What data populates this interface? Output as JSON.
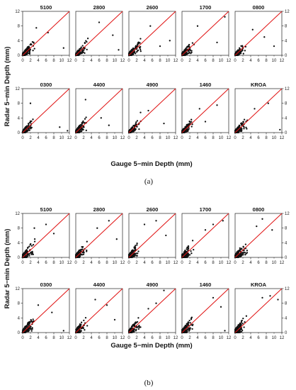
{
  "figure": {
    "xlabel": "Gauge 5−min Depth (mm)",
    "ylabel": "Radar 5−min Depth (mm)",
    "captions": [
      "(a)",
      "(b)"
    ]
  },
  "colors": {
    "points": "#111111",
    "reference_line": "#e01010",
    "frame": "#222222"
  },
  "chart_data": [
    {
      "type": "scatter",
      "subfigure": "(a)",
      "xlim": [
        0,
        12
      ],
      "ylim": [
        0,
        12
      ],
      "x_ticks": [
        0,
        4,
        8,
        12
      ],
      "x_minor_ticks": [
        2,
        6,
        10
      ],
      "x_tick_labels": [
        "0",
        "2",
        "4",
        "6",
        "8",
        "10",
        "12"
      ],
      "y_ticks": [
        0,
        4,
        8,
        12
      ],
      "y_tick_labels": [
        "0",
        "4",
        "8",
        "12"
      ],
      "reference_line": "1:1",
      "grid": false,
      "panels": [
        {
          "name": "5100",
          "spread": 0.9,
          "max_gauge": 7.5,
          "outliers": [
            [
              6.5,
              6.2
            ],
            [
              10.5,
              2.0
            ],
            [
              3.5,
              7.5
            ]
          ]
        },
        {
          "name": "2800",
          "spread": 0.9,
          "max_gauge": 8.5,
          "outliers": [
            [
              9.5,
              5.5
            ],
            [
              6.0,
              9.0
            ],
            [
              11.0,
              1.5
            ]
          ]
        },
        {
          "name": "2600",
          "spread": 1.0,
          "max_gauge": 9.0,
          "outliers": [
            [
              8.0,
              2.5
            ],
            [
              5.5,
              8.0
            ],
            [
              10.5,
              4.0
            ]
          ]
        },
        {
          "name": "1700",
          "spread": 1.0,
          "max_gauge": 9.0,
          "outliers": [
            [
              11.0,
              10.5
            ],
            [
              9.0,
              3.5
            ],
            [
              4.0,
              8.0
            ]
          ]
        },
        {
          "name": "0800",
          "spread": 0.9,
          "max_gauge": 8.0,
          "outliers": [
            [
              7.5,
              5.0
            ],
            [
              10.0,
              2.5
            ],
            [
              4.5,
              7.0
            ]
          ]
        },
        {
          "name": "0300",
          "spread": 0.9,
          "max_gauge": 7.0,
          "outliers": [
            [
              11.5,
              0.5
            ],
            [
              9.5,
              1.5
            ],
            [
              2.0,
              8.0
            ]
          ]
        },
        {
          "name": "4400",
          "spread": 1.0,
          "max_gauge": 7.0,
          "outliers": [
            [
              2.5,
              9.0
            ],
            [
              6.5,
              4.0
            ],
            [
              8.5,
              2.0
            ]
          ]
        },
        {
          "name": "4900",
          "spread": 0.8,
          "max_gauge": 6.0,
          "outliers": [
            [
              9.0,
              2.5
            ],
            [
              5.0,
              6.0
            ],
            [
              3.0,
              5.5
            ]
          ]
        },
        {
          "name": "1460",
          "spread": 0.9,
          "max_gauge": 7.0,
          "outliers": [
            [
              9.0,
              7.5
            ],
            [
              6.0,
              3.0
            ],
            [
              4.5,
              6.5
            ]
          ]
        },
        {
          "name": "KROA",
          "spread": 1.0,
          "max_gauge": 11.0,
          "outliers": [
            [
              11.5,
              0.8
            ],
            [
              8.5,
              8.0
            ],
            [
              5.0,
              6.5
            ]
          ]
        }
      ]
    },
    {
      "type": "scatter",
      "subfigure": "(b)",
      "xlim": [
        0,
        12
      ],
      "ylim": [
        0,
        12
      ],
      "x_ticks": [
        0,
        4,
        8,
        12
      ],
      "x_minor_ticks": [
        2,
        6,
        10
      ],
      "x_tick_labels": [
        "0",
        "2",
        "4",
        "6",
        "8",
        "10",
        "12"
      ],
      "y_ticks": [
        0,
        4,
        8,
        12
      ],
      "y_tick_labels": [
        "0",
        "4",
        "8",
        "12"
      ],
      "reference_line": "1:1",
      "grid": false,
      "panels": [
        {
          "name": "5100",
          "spread": 1.3,
          "max_gauge": 9.0,
          "outliers": [
            [
              6.0,
              9.0
            ],
            [
              8.0,
              6.5
            ],
            [
              3.0,
              8.0
            ]
          ]
        },
        {
          "name": "2800",
          "spread": 1.2,
          "max_gauge": 9.5,
          "outliers": [
            [
              8.5,
              10.0
            ],
            [
              5.5,
              8.0
            ],
            [
              10.5,
              5.0
            ]
          ]
        },
        {
          "name": "2600",
          "spread": 1.3,
          "max_gauge": 9.5,
          "outliers": [
            [
              7.0,
              10.0
            ],
            [
              9.5,
              6.0
            ],
            [
              4.0,
              9.0
            ]
          ]
        },
        {
          "name": "1700",
          "spread": 1.3,
          "max_gauge": 10.0,
          "outliers": [
            [
              10.5,
              10.0
            ],
            [
              8.0,
              9.0
            ],
            [
              6.0,
              7.5
            ]
          ]
        },
        {
          "name": "0800",
          "spread": 1.3,
          "max_gauge": 9.0,
          "outliers": [
            [
              7.0,
              10.5
            ],
            [
              9.5,
              7.5
            ],
            [
              5.5,
              8.5
            ]
          ]
        },
        {
          "name": "0300",
          "spread": 1.2,
          "max_gauge": 8.0,
          "outliers": [
            [
              7.5,
              5.5
            ],
            [
              10.5,
              0.5
            ],
            [
              4.0,
              7.5
            ]
          ]
        },
        {
          "name": "4400",
          "spread": 1.3,
          "max_gauge": 8.5,
          "outliers": [
            [
              8.0,
              7.5
            ],
            [
              5.0,
              9.0
            ],
            [
              10.0,
              3.5
            ]
          ]
        },
        {
          "name": "4900",
          "spread": 1.1,
          "max_gauge": 8.0,
          "outliers": [
            [
              9.0,
              11.5
            ],
            [
              7.0,
              8.0
            ],
            [
              5.0,
              6.5
            ]
          ]
        },
        {
          "name": "1460",
          "spread": 1.2,
          "max_gauge": 8.5,
          "outliers": [
            [
              8.0,
              9.5
            ],
            [
              10.0,
              7.0
            ],
            [
              11.0,
              0.5
            ]
          ]
        },
        {
          "name": "KROA",
          "spread": 1.4,
          "max_gauge": 10.0,
          "outliers": [
            [
              9.0,
              10.0
            ],
            [
              7.0,
              9.5
            ],
            [
              11.0,
              9.0
            ]
          ]
        }
      ]
    }
  ]
}
